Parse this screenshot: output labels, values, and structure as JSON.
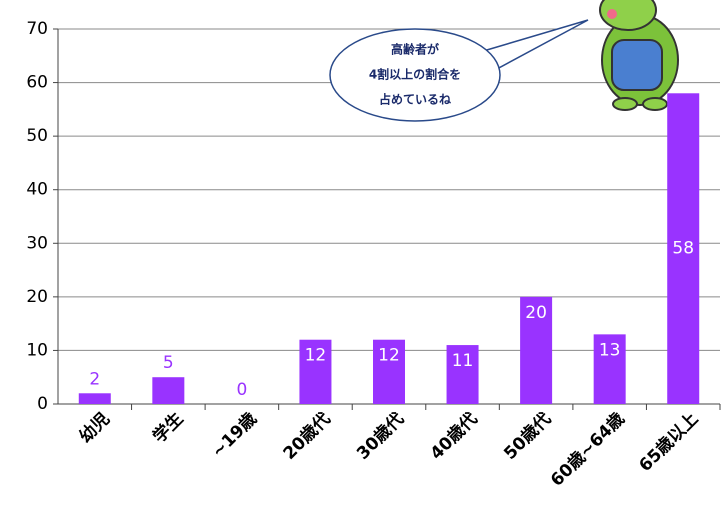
{
  "chart_data": {
    "type": "bar",
    "categories": [
      "幼児",
      "学生",
      "~19歳",
      "20歳代",
      "30歳代",
      "40歳代",
      "50歳代",
      "60歳~64歳",
      "65歳以上"
    ],
    "values": [
      2,
      5,
      0,
      12,
      12,
      11,
      20,
      13,
      58
    ],
    "color": "#9933ff",
    "ylim": [
      0,
      70
    ],
    "yticks": [
      0,
      10,
      20,
      30,
      40,
      50,
      60,
      70
    ],
    "grid": true,
    "annotation": [
      "高齢者が",
      "4割以上の割合を",
      "占めているね"
    ]
  }
}
